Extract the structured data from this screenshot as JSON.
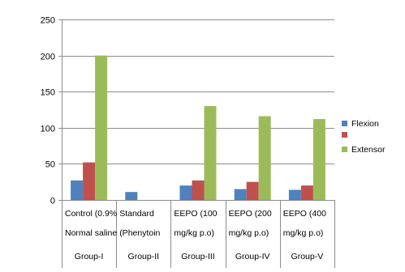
{
  "chart_data": {
    "type": "bar",
    "title": "",
    "xlabel": "",
    "ylabel": "",
    "ylim": [
      0,
      250
    ],
    "yticks": [
      0,
      50,
      100,
      150,
      200,
      250
    ],
    "grid": true,
    "legend_position": "right",
    "categories": [
      {
        "line1": "Control (0.9%",
        "line2": "Normal saline",
        "group": "Group-I"
      },
      {
        "line1": "Standard",
        "line2": "(Phenytoin",
        "group": "Group-II"
      },
      {
        "line1": "EEPO (100",
        "line2": "mg/kg p.o)",
        "group": "Group-III"
      },
      {
        "line1": "EEPO (200",
        "line2": "mg/kg p.o)",
        "group": "Group-IV"
      },
      {
        "line1": "EEPO (400",
        "line2": "mg/kg p.o)",
        "group": "Group-V"
      }
    ],
    "series": [
      {
        "name": "Flexion",
        "color": "#4f81bd",
        "values": [
          27,
          11,
          20,
          15,
          14
        ]
      },
      {
        "name": "",
        "color": "#c0504d",
        "values": [
          52,
          0,
          27,
          25,
          20
        ]
      },
      {
        "name": "Extensor",
        "color": "#9bbb59",
        "values": [
          200,
          0,
          130,
          116,
          112
        ]
      }
    ]
  }
}
